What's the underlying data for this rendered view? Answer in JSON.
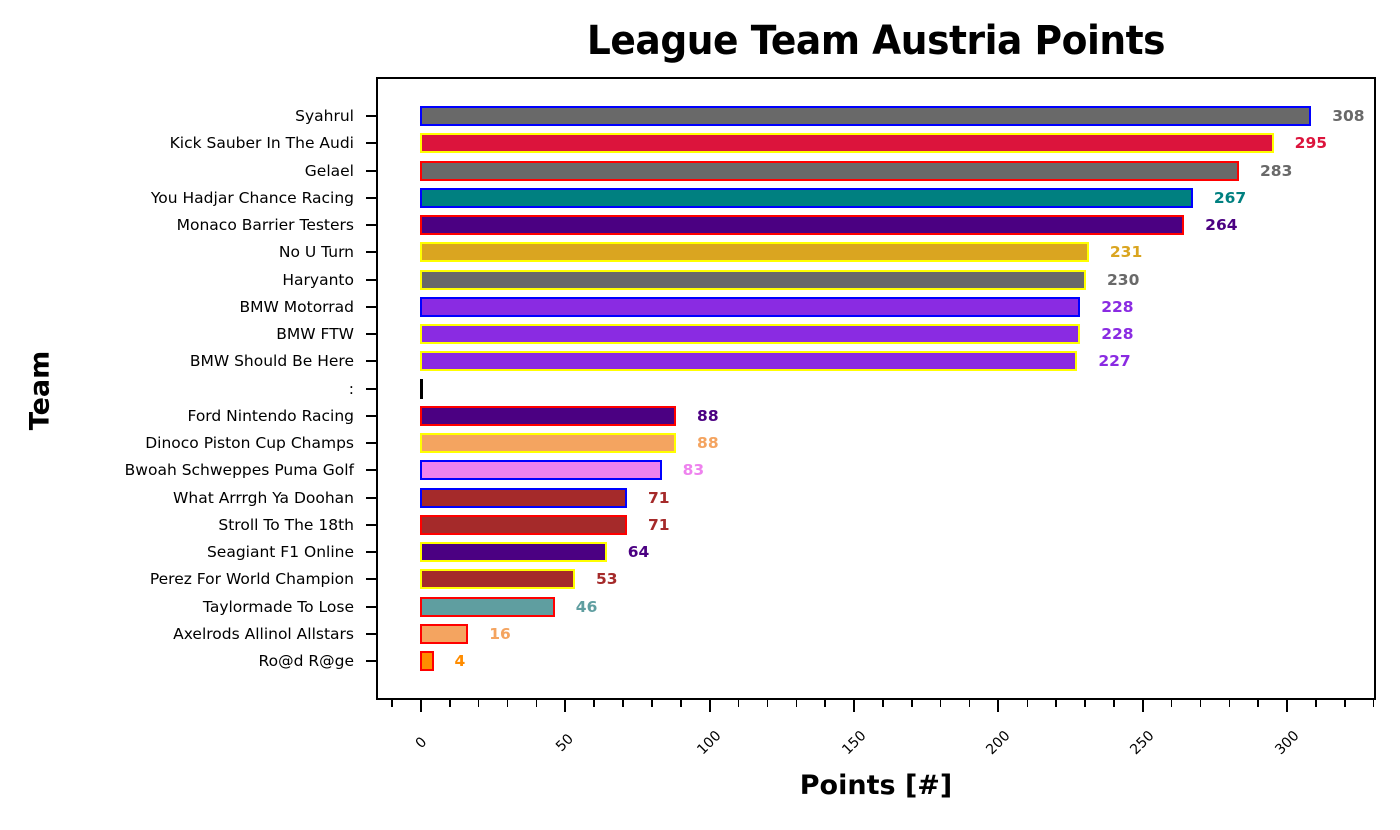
{
  "chart_data": {
    "type": "bar",
    "orientation": "horizontal",
    "title": "League Team Austria Points",
    "xlabel": "Points [#]",
    "ylabel": "Team",
    "xlim": [
      -15,
      331
    ],
    "xticks": [
      0,
      50,
      100,
      150,
      200,
      250,
      300
    ],
    "grid": false,
    "legend": null,
    "categories": [
      "Syahrul",
      "Kick Sauber In The Audi",
      "Gelael",
      "You Hadjar Chance Racing",
      "Monaco Barrier Testers",
      "No U Turn",
      "Haryanto",
      "BMW Motorrad",
      "BMW FTW",
      "BMW Should Be Here",
      ":",
      "Ford Nintendo Racing",
      "Dinoco Piston Cup Champs",
      "Bwoah Schweppes Puma Golf",
      "What Arrrgh Ya Doohan",
      "Stroll To The 18th",
      "Seagiant F1 Online",
      "Perez For World Champion",
      "Taylormade To Lose",
      "Axelrods Allinol Allstars",
      "Ro@d R@ge"
    ],
    "values": [
      308,
      295,
      283,
      267,
      264,
      231,
      230,
      228,
      228,
      227,
      null,
      88,
      88,
      83,
      71,
      71,
      64,
      53,
      46,
      16,
      4
    ],
    "bars": [
      {
        "team": "Syahrul",
        "value": 308,
        "fill": "#696969",
        "edge": "#0000ff"
      },
      {
        "team": "Kick Sauber In The Audi",
        "value": 295,
        "fill": "#dc143c",
        "edge": "#ffff00"
      },
      {
        "team": "Gelael",
        "value": 283,
        "fill": "#696969",
        "edge": "#ff0000"
      },
      {
        "team": "You Hadjar Chance Racing",
        "value": 267,
        "fill": "#008080",
        "edge": "#0000ff"
      },
      {
        "team": "Monaco Barrier Testers",
        "value": 264,
        "fill": "#4b0082",
        "edge": "#ff0000"
      },
      {
        "team": "No U Turn",
        "value": 231,
        "fill": "#daa520",
        "edge": "#ffff00"
      },
      {
        "team": "Haryanto",
        "value": 230,
        "fill": "#696969",
        "edge": "#ffff00"
      },
      {
        "team": "BMW Motorrad",
        "value": 228,
        "fill": "#8a2be2",
        "edge": "#0000ff"
      },
      {
        "team": "BMW FTW",
        "value": 228,
        "fill": "#8a2be2",
        "edge": "#ffff00"
      },
      {
        "team": "BMW Should Be Here",
        "value": 227,
        "fill": "#8a2be2",
        "edge": "#ffff00"
      },
      {
        "team": ":",
        "value": null,
        "fill": "#000000",
        "edge": "#000000",
        "separator": true
      },
      {
        "team": "Ford Nintendo Racing",
        "value": 88,
        "fill": "#4b0082",
        "edge": "#ff0000"
      },
      {
        "team": "Dinoco Piston Cup Champs",
        "value": 88,
        "fill": "#f4a460",
        "edge": "#ffff00"
      },
      {
        "team": "Bwoah Schweppes Puma Golf",
        "value": 83,
        "fill": "#ee82ee",
        "edge": "#0000ff"
      },
      {
        "team": "What Arrrgh Ya Doohan",
        "value": 71,
        "fill": "#a52a2a",
        "edge": "#0000ff"
      },
      {
        "team": "Stroll To The 18th",
        "value": 71,
        "fill": "#a52a2a",
        "edge": "#ff0000"
      },
      {
        "team": "Seagiant F1 Online",
        "value": 64,
        "fill": "#4b0082",
        "edge": "#ffff00"
      },
      {
        "team": "Perez For World Champion",
        "value": 53,
        "fill": "#a52a2a",
        "edge": "#ffff00"
      },
      {
        "team": "Taylormade To Lose",
        "value": 46,
        "fill": "#5f9ea0",
        "edge": "#ff0000"
      },
      {
        "team": "Axelrods Allinol Allstars",
        "value": 16,
        "fill": "#f4a460",
        "edge": "#ff0000"
      },
      {
        "team": "Ro@d R@ge",
        "value": 4,
        "fill": "#ff8c00",
        "edge": "#ff0000"
      }
    ]
  }
}
